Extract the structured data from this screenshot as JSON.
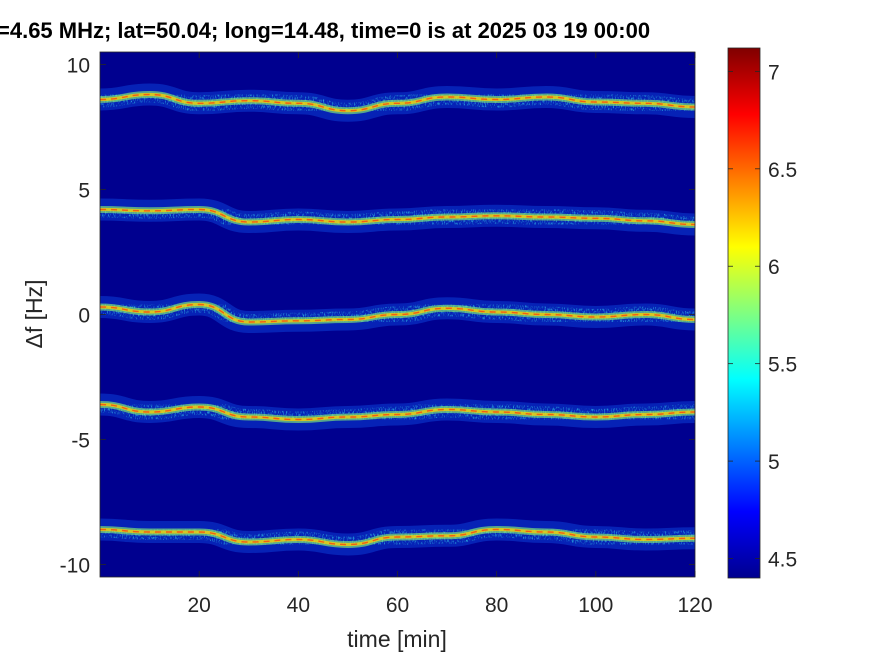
{
  "chart_data": [
    {
      "type": "heatmap",
      "title": "=4.65 MHz;  lat=50.04; long=14.48, time=0 is at 2025 03 19 00:00",
      "xlabel": "time [min]",
      "ylabel": "Δf [Hz]",
      "xlim": [
        0,
        120
      ],
      "ylim": [
        -10.5,
        10.5
      ],
      "xticks": [
        20,
        40,
        60,
        80,
        100,
        120
      ],
      "xtick_labels": [
        "20",
        "40",
        "60",
        "80",
        "100",
        "120"
      ],
      "yticks": [
        10,
        5,
        0,
        -5,
        -10
      ],
      "ytick_labels": [
        "10",
        "5",
        "0",
        "-5",
        "-10"
      ],
      "background_color": "#00008f",
      "grid": false,
      "bands": [
        {
          "center_hz": 8.5,
          "trace": [
            [
              0,
              8.6
            ],
            [
              10,
              8.8
            ],
            [
              20,
              8.45
            ],
            [
              30,
              8.55
            ],
            [
              40,
              8.45
            ],
            [
              50,
              8.15
            ],
            [
              60,
              8.45
            ],
            [
              70,
              8.7
            ],
            [
              80,
              8.6
            ],
            [
              90,
              8.7
            ],
            [
              100,
              8.5
            ],
            [
              110,
              8.45
            ],
            [
              120,
              8.3
            ]
          ]
        },
        {
          "center_hz": 4.0,
          "trace": [
            [
              0,
              4.2
            ],
            [
              10,
              4.15
            ],
            [
              20,
              4.2
            ],
            [
              30,
              3.7
            ],
            [
              40,
              3.8
            ],
            [
              50,
              3.7
            ],
            [
              60,
              3.8
            ],
            [
              70,
              3.9
            ],
            [
              80,
              3.95
            ],
            [
              90,
              3.9
            ],
            [
              100,
              3.85
            ],
            [
              110,
              3.75
            ],
            [
              120,
              3.6
            ]
          ]
        },
        {
          "center_hz": 0.0,
          "trace": [
            [
              0,
              0.3
            ],
            [
              10,
              0.1
            ],
            [
              20,
              0.4
            ],
            [
              30,
              -0.3
            ],
            [
              40,
              -0.25
            ],
            [
              50,
              -0.2
            ],
            [
              60,
              0.0
            ],
            [
              70,
              0.25
            ],
            [
              80,
              0.1
            ],
            [
              90,
              0.0
            ],
            [
              100,
              -0.1
            ],
            [
              110,
              0.0
            ],
            [
              120,
              -0.2
            ]
          ]
        },
        {
          "center_hz": -4.0,
          "trace": [
            [
              0,
              -3.6
            ],
            [
              10,
              -3.9
            ],
            [
              20,
              -3.7
            ],
            [
              30,
              -4.1
            ],
            [
              40,
              -4.2
            ],
            [
              50,
              -4.1
            ],
            [
              60,
              -4.0
            ],
            [
              70,
              -3.8
            ],
            [
              80,
              -3.9
            ],
            [
              90,
              -4.0
            ],
            [
              100,
              -4.1
            ],
            [
              110,
              -4.0
            ],
            [
              120,
              -3.9
            ]
          ]
        },
        {
          "center_hz": -8.8,
          "trace": [
            [
              0,
              -8.6
            ],
            [
              10,
              -8.7
            ],
            [
              20,
              -8.7
            ],
            [
              30,
              -9.1
            ],
            [
              40,
              -9.0
            ],
            [
              50,
              -9.2
            ],
            [
              60,
              -8.9
            ],
            [
              70,
              -8.85
            ],
            [
              80,
              -8.6
            ],
            [
              90,
              -8.7
            ],
            [
              100,
              -8.9
            ],
            [
              110,
              -9.0
            ],
            [
              120,
              -8.95
            ]
          ]
        }
      ],
      "colorbar": {
        "colormap": "jet",
        "range": [
          4.4,
          7.12
        ],
        "ticks": [
          4.5,
          5,
          5.5,
          6,
          6.5,
          7
        ],
        "tick_labels": [
          "4.5",
          "5",
          "5.5",
          "6",
          "6.5",
          "7"
        ]
      }
    }
  ]
}
